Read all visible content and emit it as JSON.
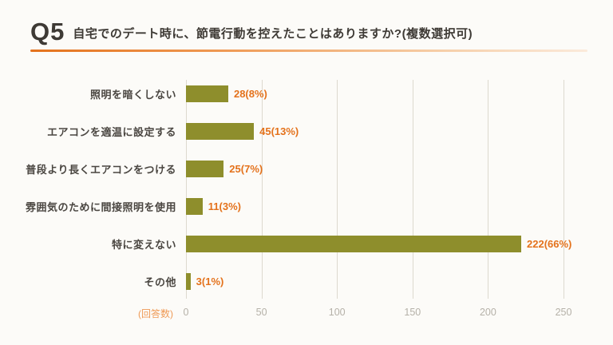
{
  "header": {
    "question_no": "Q5",
    "title": "自宅でのデート時に、節電行動を控えたことはありますか?(複数選択可)",
    "accent_color": "#e4721c"
  },
  "chart_data": {
    "type": "bar",
    "orientation": "horizontal",
    "title": "Q5 自宅でのデート時に、節電行動を控えたことはありますか?(複数選択可)",
    "categories": [
      "照明を暗くしない",
      "エアコンを適温に設定する",
      "普段より長くエアコンをつける",
      "雰囲気のために間接照明を使用",
      "特に変えない",
      "その他"
    ],
    "values": [
      28,
      45,
      25,
      11,
      222,
      3
    ],
    "value_labels": [
      "28(8%)",
      "45(13%)",
      "25(7%)",
      "11(3%)",
      "222(66%)",
      "3(1%)"
    ],
    "xlabel": "(回答数)",
    "ylabel": "",
    "xticks": [
      0,
      50,
      100,
      150,
      200,
      250
    ],
    "xlim": [
      0,
      250
    ],
    "grid": true,
    "legend": false,
    "bar_color": "#8e8e2c",
    "value_label_color": "#e4721c"
  }
}
